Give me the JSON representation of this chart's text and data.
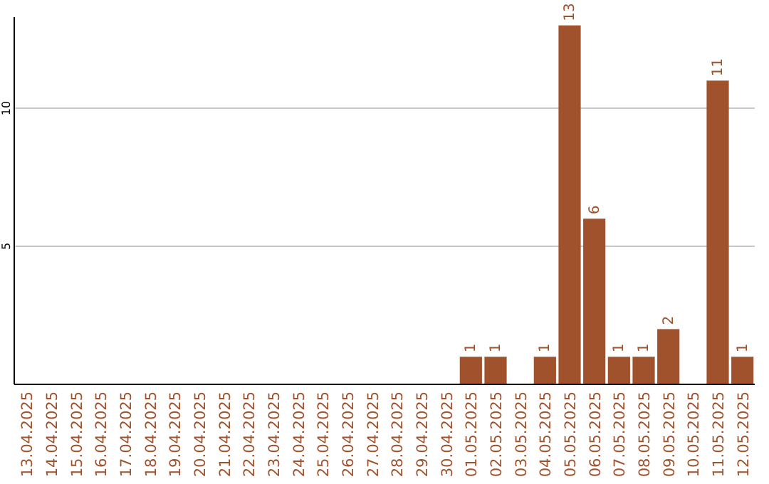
{
  "chart_data": {
    "type": "bar",
    "categories": [
      "13.04.2025",
      "14.04.2025",
      "15.04.2025",
      "16.04.2025",
      "17.04.2025",
      "18.04.2025",
      "19.04.2025",
      "20.04.2025",
      "21.04.2025",
      "22.04.2025",
      "23.04.2025",
      "24.04.2025",
      "25.04.2025",
      "26.04.2025",
      "27.04.2025",
      "28.04.2025",
      "29.04.2025",
      "30.04.2025",
      "01.05.2025",
      "02.05.2025",
      "03.05.2025",
      "04.05.2025",
      "05.05.2025",
      "06.05.2025",
      "07.05.2025",
      "08.05.2025",
      "09.05.2025",
      "10.05.2025",
      "11.05.2025",
      "12.05.2025"
    ],
    "values": [
      0,
      0,
      0,
      0,
      0,
      0,
      0,
      0,
      0,
      0,
      0,
      0,
      0,
      0,
      0,
      0,
      0,
      0,
      1,
      1,
      0,
      1,
      13,
      6,
      1,
      1,
      2,
      0,
      11,
      1
    ],
    "value_labels": [
      null,
      null,
      null,
      null,
      null,
      null,
      null,
      null,
      null,
      null,
      null,
      null,
      null,
      null,
      null,
      null,
      null,
      null,
      "1",
      "1",
      null,
      "1",
      "13",
      "6",
      "1",
      "1",
      "2",
      null,
      "11",
      "1"
    ],
    "color": "#a0522d",
    "ylim": [
      0,
      13.3
    ],
    "yticks": [
      5,
      10
    ],
    "grid": "y"
  }
}
